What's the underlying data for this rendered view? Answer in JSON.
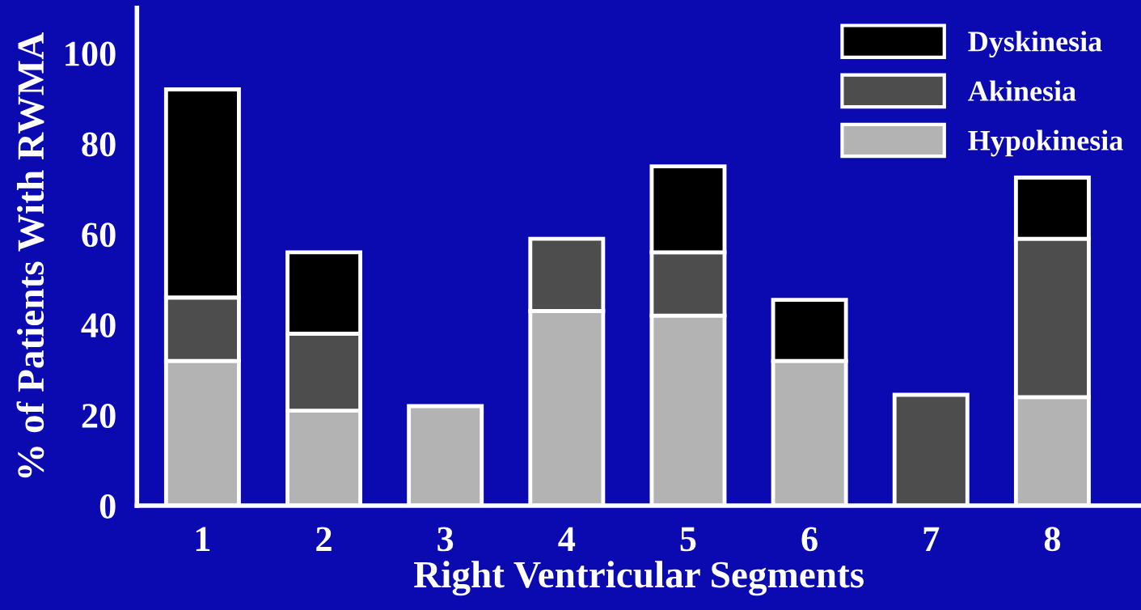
{
  "chart_data": {
    "type": "bar",
    "stacked": true,
    "xlabel": "Right Ventricular Segments",
    "ylabel": "% of Patients With RWMA",
    "categories": [
      "1",
      "2",
      "3",
      "4",
      "5",
      "6",
      "7",
      "8"
    ],
    "series": [
      {
        "name": "Hypokinesia",
        "color": "#b3b3b3",
        "values": [
          32,
          21,
          22,
          43,
          42,
          32,
          null,
          24
        ]
      },
      {
        "name": "Akinesia",
        "color": "#4d4d4d",
        "values": [
          14,
          17,
          null,
          16,
          14,
          null,
          24.5,
          35
        ]
      },
      {
        "name": "Dyskinesia",
        "color": "#000000",
        "values": [
          46,
          18,
          null,
          null,
          19,
          13.5,
          null,
          13.5
        ]
      }
    ],
    "ylim": [
      0,
      110
    ],
    "yticks": [
      0,
      20,
      40,
      60,
      80,
      100
    ],
    "grid": false,
    "legend": "top right"
  }
}
